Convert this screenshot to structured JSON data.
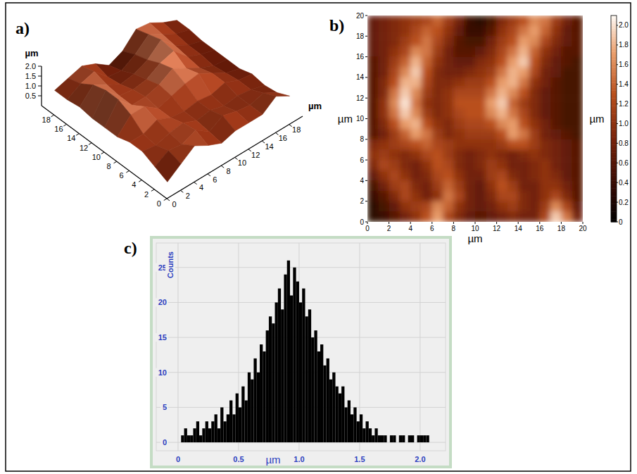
{
  "chart_data": [
    {
      "type": "surface",
      "title": "a)",
      "x": [
        1,
        3,
        5,
        7,
        9,
        11,
        13,
        15,
        17,
        19
      ],
      "y": [
        1,
        3,
        5,
        7,
        9,
        11,
        13,
        15,
        17,
        19
      ],
      "heights": [
        [
          0.4,
          0.9,
          1.4,
          1.0,
          0.7,
          0.9,
          0.9,
          0.9,
          1.4,
          1.0
        ],
        [
          0.7,
          1.1,
          1.0,
          1.3,
          0.8,
          1.2,
          1.0,
          0.9,
          1.1,
          0.7
        ],
        [
          1.0,
          0.9,
          1.1,
          1.2,
          0.9,
          1.0,
          0.8,
          0.9,
          0.8,
          0.6
        ],
        [
          1.0,
          1.0,
          1.3,
          1.0,
          0.9,
          1.0,
          0.9,
          1.1,
          0.8,
          0.7
        ],
        [
          0.8,
          1.5,
          1.5,
          1.0,
          1.2,
          1.4,
          1.5,
          1.1,
          0.7,
          0.5
        ],
        [
          0.8,
          1.8,
          1.1,
          1.1,
          1.3,
          1.7,
          1.3,
          0.9,
          0.6,
          0.5
        ],
        [
          0.8,
          1.8,
          1.1,
          1.0,
          1.1,
          1.5,
          1.7,
          1.0,
          0.7,
          0.5
        ],
        [
          0.9,
          1.6,
          1.2,
          0.8,
          0.9,
          1.2,
          1.8,
          1.1,
          0.7,
          0.5
        ],
        [
          0.8,
          1.2,
          1.4,
          0.7,
          0.6,
          1.0,
          1.6,
          1.2,
          0.8,
          0.6
        ],
        [
          0.8,
          1.0,
          1.2,
          0.9,
          0.4,
          0.7,
          1.4,
          1.3,
          0.9,
          0.6
        ]
      ],
      "xlim": [
        0,
        20
      ],
      "ylim": [
        0,
        20
      ],
      "xticks": [
        0,
        2,
        4,
        6,
        8,
        10,
        12,
        14,
        16,
        18
      ],
      "yticks": [
        0,
        2,
        4,
        6,
        8,
        10,
        12,
        14,
        16,
        18
      ],
      "zlim": [
        0,
        2
      ],
      "zticks": [
        0.5,
        {
          "value": 1,
          "label": "1.0"
        },
        1.5,
        {
          "value": 2,
          "label": "2.0"
        }
      ],
      "xlabel": "µm",
      "zlabel": "µm"
    },
    {
      "type": "heatmap",
      "title": "b)",
      "cells": [
        [
          0.7,
          0.8,
          0.9,
          1.0,
          1.1,
          1.2,
          1.4,
          1.1,
          0.8,
          0.4,
          0.3,
          0.5,
          0.9,
          1.1,
          1.3,
          1.6,
          1.5,
          1.1,
          0.8,
          0.6
        ],
        [
          0.7,
          0.8,
          0.9,
          1.0,
          1.2,
          1.4,
          1.3,
          1.0,
          0.7,
          0.4,
          0.4,
          0.6,
          1.0,
          1.2,
          1.5,
          1.7,
          1.4,
          1.0,
          0.7,
          0.6
        ],
        [
          0.7,
          0.8,
          0.9,
          1.1,
          1.3,
          1.5,
          1.2,
          0.9,
          0.6,
          0.5,
          0.5,
          0.8,
          1.1,
          1.3,
          1.7,
          1.6,
          1.2,
          0.9,
          0.7,
          0.6
        ],
        [
          0.7,
          0.8,
          1.0,
          1.2,
          1.6,
          1.5,
          1.1,
          0.8,
          0.6,
          0.6,
          0.7,
          0.9,
          1.2,
          1.5,
          1.8,
          1.4,
          1.0,
          0.8,
          0.6,
          0.6
        ],
        [
          0.6,
          0.8,
          1.1,
          1.4,
          1.8,
          1.4,
          1.0,
          0.8,
          0.7,
          0.7,
          0.9,
          1.0,
          1.3,
          1.7,
          1.9,
          1.3,
          0.9,
          0.7,
          0.6,
          0.5
        ],
        [
          0.6,
          0.8,
          1.2,
          1.6,
          1.9,
          1.3,
          0.9,
          0.8,
          0.8,
          0.9,
          1.0,
          1.1,
          1.5,
          1.8,
          1.7,
          1.2,
          0.8,
          0.7,
          0.5,
          0.5
        ],
        [
          0.6,
          0.9,
          1.3,
          1.8,
          1.8,
          1.2,
          0.9,
          0.9,
          1.0,
          1.1,
          1.1,
          1.3,
          1.7,
          1.8,
          1.5,
          1.0,
          0.8,
          0.6,
          0.5,
          0.5
        ],
        [
          0.6,
          0.9,
          1.5,
          1.9,
          1.6,
          1.1,
          0.9,
          1.0,
          1.2,
          1.2,
          1.2,
          1.5,
          1.8,
          1.6,
          1.3,
          0.9,
          0.7,
          0.6,
          0.5,
          0.5
        ],
        [
          0.6,
          1.0,
          1.6,
          2.0,
          1.5,
          1.0,
          0.9,
          1.0,
          1.3,
          1.3,
          1.3,
          1.7,
          1.9,
          1.4,
          1.1,
          0.9,
          0.7,
          0.6,
          0.5,
          0.5
        ],
        [
          0.6,
          1.0,
          1.5,
          1.9,
          1.6,
          1.1,
          0.9,
          1.0,
          1.2,
          1.3,
          1.3,
          1.6,
          1.8,
          1.5,
          1.2,
          0.9,
          0.7,
          0.6,
          0.5,
          0.5
        ],
        [
          0.6,
          0.9,
          1.3,
          1.7,
          1.8,
          1.3,
          1.0,
          0.9,
          1.1,
          1.2,
          1.2,
          1.3,
          1.6,
          1.7,
          1.3,
          1.0,
          0.8,
          0.6,
          0.5,
          0.5
        ],
        [
          0.6,
          0.8,
          1.1,
          1.4,
          1.7,
          1.5,
          1.1,
          0.9,
          1.0,
          1.1,
          1.1,
          1.1,
          1.3,
          1.7,
          1.5,
          1.1,
          0.8,
          0.7,
          0.6,
          0.5
        ],
        [
          0.9,
          1.0,
          1.1,
          1.2,
          1.3,
          1.4,
          1.2,
          1.1,
          1.0,
          1.0,
          1.0,
          1.0,
          1.1,
          1.3,
          1.3,
          1.1,
          0.9,
          0.8,
          0.7,
          0.6
        ],
        [
          1.0,
          1.1,
          1.0,
          0.9,
          1.0,
          1.2,
          1.3,
          1.1,
          0.9,
          0.8,
          0.9,
          1.0,
          0.9,
          0.8,
          0.9,
          1.0,
          0.9,
          0.8,
          0.7,
          0.6
        ],
        [
          0.9,
          1.2,
          1.1,
          0.9,
          0.8,
          1.0,
          1.3,
          1.2,
          0.9,
          0.8,
          0.9,
          1.1,
          1.0,
          0.8,
          0.8,
          0.9,
          1.0,
          0.8,
          0.7,
          0.6
        ],
        [
          0.7,
          1.0,
          1.2,
          1.0,
          0.8,
          0.9,
          1.2,
          1.3,
          1.0,
          0.8,
          0.8,
          1.1,
          1.2,
          0.9,
          0.8,
          0.9,
          1.0,
          0.9,
          0.7,
          0.6
        ],
        [
          0.5,
          0.8,
          1.1,
          1.2,
          0.9,
          0.8,
          1.1,
          1.4,
          1.1,
          0.8,
          0.7,
          1.0,
          1.3,
          1.1,
          0.8,
          0.8,
          1.0,
          1.0,
          0.8,
          0.6
        ],
        [
          0.4,
          0.6,
          0.9,
          1.2,
          1.0,
          0.8,
          1.0,
          1.5,
          1.2,
          0.8,
          0.7,
          0.9,
          1.2,
          1.2,
          0.9,
          0.8,
          1.0,
          1.2,
          0.9,
          0.6
        ],
        [
          0.3,
          0.5,
          0.7,
          1.0,
          1.1,
          1.2,
          1.6,
          1.4,
          1.0,
          0.8,
          0.7,
          0.8,
          1.0,
          1.1,
          0.9,
          0.8,
          1.1,
          1.6,
          1.2,
          0.7
        ],
        [
          0.3,
          0.4,
          0.6,
          0.8,
          1.0,
          1.3,
          1.7,
          1.2,
          0.9,
          0.7,
          0.6,
          0.7,
          0.8,
          0.9,
          0.8,
          0.8,
          1.2,
          1.9,
          1.5,
          0.8
        ]
      ],
      "xlim": [
        0,
        20
      ],
      "ylim": [
        0,
        20
      ],
      "xticks": [
        0,
        2,
        4,
        6,
        8,
        10,
        12,
        14,
        16,
        18,
        20
      ],
      "yticks": [
        0,
        2,
        4,
        6,
        8,
        10,
        12,
        14,
        16,
        18,
        20
      ],
      "xlabel": "µm",
      "ylabel": "µm",
      "colorbar_lim": [
        0,
        2.1
      ],
      "colorbar_ticks": [
        0,
        0.2,
        0.4,
        0.6,
        0.8,
        {
          "value": 1,
          "label": "1.0"
        },
        1.2,
        1.4,
        1.6,
        1.8,
        {
          "value": 2,
          "label": "2.0"
        }
      ],
      "colorbar_label": "µm"
    },
    {
      "type": "histogram",
      "title": "c)",
      "bins": [
        0.025,
        0.05,
        0.075,
        0.1,
        0.125,
        0.15,
        0.175,
        0.2,
        0.225,
        0.25,
        0.275,
        0.3,
        0.325,
        0.35,
        0.375,
        0.4,
        0.425,
        0.45,
        0.475,
        0.5,
        0.525,
        0.55,
        0.575,
        0.6,
        0.625,
        0.65,
        0.675,
        0.7,
        0.725,
        0.75,
        0.775,
        0.8,
        0.825,
        0.85,
        0.875,
        0.9,
        0.925,
        0.95,
        0.975,
        1.0,
        1.025,
        1.05,
        1.075,
        1.1,
        1.125,
        1.15,
        1.175,
        1.2,
        1.225,
        1.25,
        1.275,
        1.3,
        1.325,
        1.35,
        1.375,
        1.4,
        1.425,
        1.45,
        1.475,
        1.5,
        1.525,
        1.55,
        1.575,
        1.6,
        1.625,
        1.65,
        1.675,
        1.7,
        1.725,
        1.75,
        1.775,
        1.8,
        1.825,
        1.85,
        1.875,
        1.9,
        1.925,
        1.95,
        1.975,
        2.0,
        2.025,
        2.05,
        2.075
      ],
      "counts": [
        1,
        2,
        1,
        1,
        2,
        3,
        1,
        2,
        3,
        2,
        3,
        4,
        2,
        5,
        3,
        4,
        6,
        4,
        7,
        5,
        8,
        6,
        10,
        9,
        12,
        10,
        14,
        13,
        16,
        18,
        17,
        20,
        22,
        19,
        24,
        26,
        21,
        25,
        23,
        20,
        22,
        18,
        19,
        15,
        16,
        13,
        14,
        11,
        12,
        9,
        10,
        8,
        7,
        8,
        5,
        6,
        4,
        5,
        3,
        4,
        2,
        3,
        2,
        1,
        2,
        1,
        1,
        1,
        0,
        1,
        1,
        0,
        1,
        1,
        0,
        1,
        1,
        0,
        1,
        1,
        1,
        1
      ],
      "color": "#000000",
      "xlim": [
        -0.18,
        2.21
      ],
      "ylim": [
        -1.2,
        28.5
      ],
      "xticks": [
        0,
        0.5,
        {
          "value": 1,
          "label": "1.0"
        },
        1.5,
        {
          "value": 2,
          "label": "2.0"
        }
      ],
      "yticks": [
        0,
        5,
        10,
        15,
        20,
        25
      ],
      "xlabel": "µm",
      "ylabel": "Counts",
      "grid": true
    }
  ]
}
